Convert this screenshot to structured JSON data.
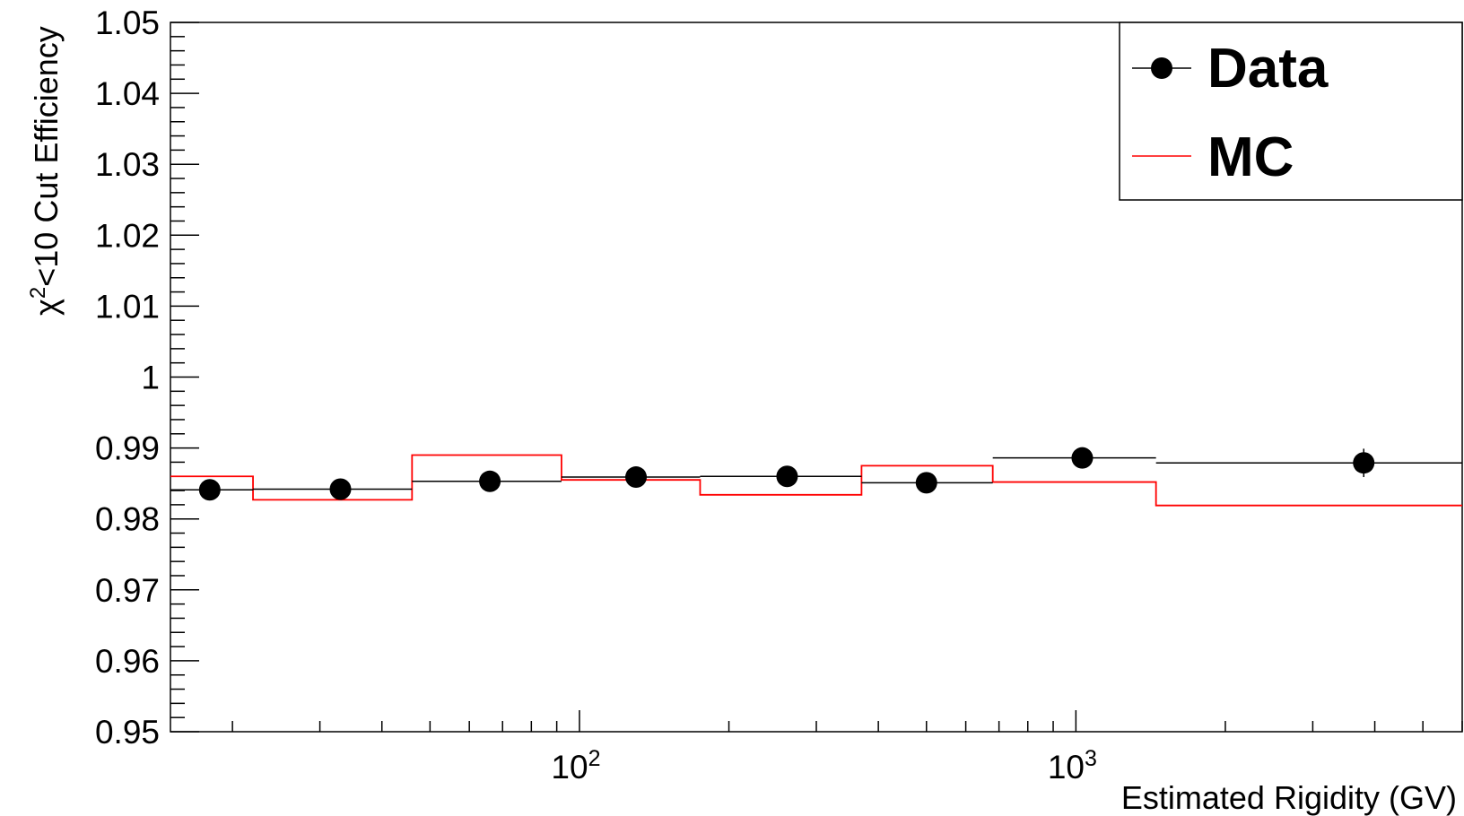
{
  "chart_data": {
    "type": "scatter",
    "title": "",
    "xlabel": "Estimated Rigidity (GV)",
    "ylabel": "χ²<10 Cut Efficiency",
    "ylabel_parts": {
      "symbol": "χ",
      "superscript": "2",
      "rest": "<10 Cut Efficiency"
    },
    "x_scale": "log",
    "xlim": [
      15,
      6000
    ],
    "ylim": [
      0.95,
      1.05
    ],
    "grid": false,
    "legend_position": "top-right",
    "y_tick_labels": [
      "0.95",
      "0.96",
      "0.97",
      "0.98",
      "0.99",
      "1",
      "1.01",
      "1.02",
      "1.03",
      "1.04",
      "1.05"
    ],
    "y_ticks": [
      0.95,
      0.96,
      0.97,
      0.98,
      0.99,
      1.0,
      1.01,
      1.02,
      1.03,
      1.04,
      1.05
    ],
    "x_tick_labels": [
      {
        "value": 100,
        "base": "10",
        "exp": "2"
      },
      {
        "value": 1000,
        "base": "10",
        "exp": "3"
      }
    ],
    "series": [
      {
        "name": "Data",
        "marker": "circle",
        "color": "#000000",
        "points": [
          {
            "x": 18,
            "y": 0.9841,
            "xlo": 15,
            "xhi": 22,
            "err": 0.0003
          },
          {
            "x": 33,
            "y": 0.9842,
            "xlo": 22,
            "xhi": 46,
            "err": 0.0003
          },
          {
            "x": 66,
            "y": 0.9853,
            "xlo": 46,
            "xhi": 92,
            "err": 0.0003
          },
          {
            "x": 130,
            "y": 0.9859,
            "xlo": 92,
            "xhi": 175,
            "err": 0.0003
          },
          {
            "x": 262,
            "y": 0.986,
            "xlo": 175,
            "xhi": 370,
            "err": 0.0004
          },
          {
            "x": 500,
            "y": 0.9851,
            "xlo": 370,
            "xhi": 680,
            "err": 0.0005
          },
          {
            "x": 1030,
            "y": 0.9886,
            "xlo": 680,
            "xhi": 1450,
            "err": 0.0012
          },
          {
            "x": 3800,
            "y": 0.9879,
            "xlo": 1450,
            "xhi": 6000,
            "err": 0.002
          }
        ]
      },
      {
        "name": "MC",
        "type": "step",
        "color": "#ff0000",
        "edges": [
          15,
          22,
          46,
          92,
          175,
          370,
          680,
          1450,
          6000
        ],
        "values": [
          0.986,
          0.9827,
          0.989,
          0.9855,
          0.9834,
          0.9875,
          0.9852,
          0.9819
        ]
      }
    ]
  }
}
